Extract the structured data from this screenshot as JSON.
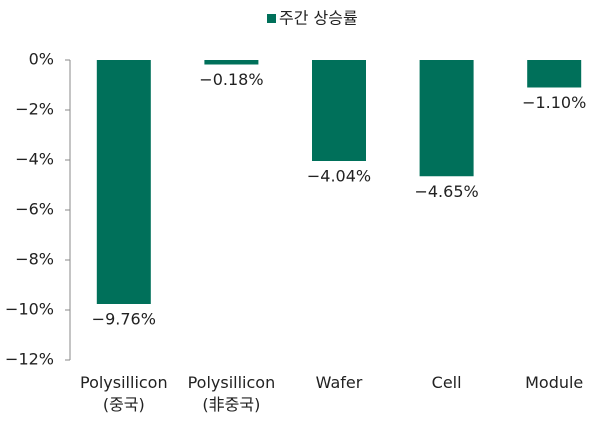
{
  "chart_data": {
    "type": "bar",
    "legend": "주간 상승률",
    "categories": [
      "Polysillicon (중국)",
      "Polysillicon (非중국)",
      "Wafer",
      "Cell",
      "Module"
    ],
    "values": [
      -9.76,
      -0.18,
      -4.04,
      -4.65,
      -1.1
    ],
    "value_labels": [
      "−9.76%",
      "−0.18%",
      "−4.04%",
      "−4.65%",
      "−1.10%"
    ],
    "color": "#00705a",
    "ylim": [
      -12,
      0
    ],
    "yticks": [
      {
        "value": 0,
        "label": "0%"
      },
      {
        "value": -2,
        "label": "−2%"
      },
      {
        "value": -4,
        "label": "−4%"
      },
      {
        "value": -6,
        "label": "−6%"
      },
      {
        "value": -8,
        "label": "−8%"
      },
      {
        "value": -10,
        "label": "−10%"
      },
      {
        "value": -12,
        "label": "−12%"
      }
    ]
  }
}
